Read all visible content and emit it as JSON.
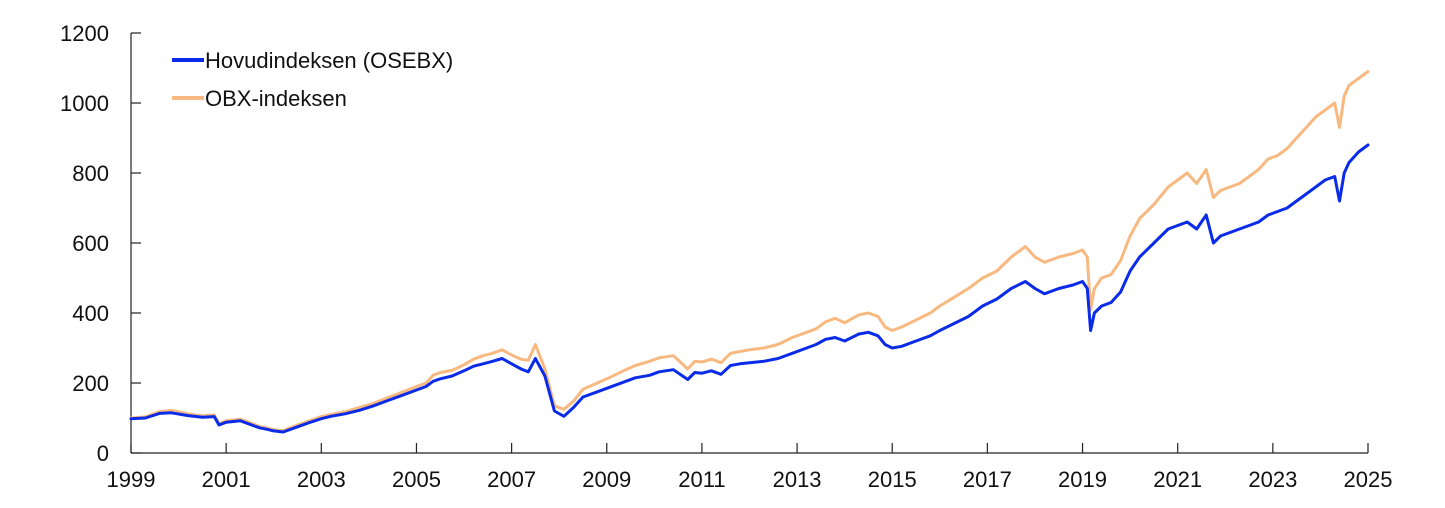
{
  "chart_data": {
    "type": "line",
    "title": "",
    "xlabel": "",
    "ylabel": "",
    "xlim": [
      1999,
      2025
    ],
    "ylim": [
      0,
      1200
    ],
    "grid": false,
    "legend_position": "top-left",
    "x_ticks": [
      1999,
      2001,
      2003,
      2005,
      2007,
      2009,
      2011,
      2013,
      2015,
      2017,
      2019,
      2021,
      2023,
      2025
    ],
    "x_tick_labels": [
      "1999",
      "2001",
      "2003",
      "2005",
      "2007",
      "2009",
      "2011",
      "2013",
      "2015",
      "2017",
      "2019",
      "2021",
      "2023",
      "2025"
    ],
    "y_ticks": [
      0,
      200,
      400,
      600,
      800,
      1000,
      1200
    ],
    "y_tick_labels": [
      "0",
      "200",
      "400",
      "600",
      "800",
      "1000",
      "1200"
    ],
    "series": [
      {
        "name": "Hovudindeksen (OSEBX)",
        "color": "#0a2be8",
        "x": [
          1999.0,
          1999.3,
          1999.6,
          1999.85,
          2000.2,
          2000.5,
          2000.75,
          2000.85,
          2001.0,
          2001.3,
          2001.5,
          2001.7,
          2001.85,
          2002.0,
          2002.2,
          2002.5,
          2002.75,
          2003.0,
          2003.2,
          2003.5,
          2003.8,
          2004.1,
          2004.4,
          2004.7,
          2005.0,
          2005.2,
          2005.35,
          2005.5,
          2005.75,
          2006.0,
          2006.2,
          2006.4,
          2006.6,
          2006.8,
          2007.0,
          2007.2,
          2007.35,
          2007.5,
          2007.7,
          2007.9,
          2008.1,
          2008.3,
          2008.5,
          2008.8,
          2009.0,
          2009.2,
          2009.4,
          2009.6,
          2009.9,
          2010.1,
          2010.4,
          2010.7,
          2010.85,
          2011.0,
          2011.2,
          2011.4,
          2011.6,
          2011.8,
          2012.0,
          2012.3,
          2012.6,
          2012.9,
          2013.2,
          2013.4,
          2013.6,
          2013.8,
          2014.0,
          2014.3,
          2014.5,
          2014.7,
          2014.85,
          2015.0,
          2015.2,
          2015.5,
          2015.8,
          2016.0,
          2016.3,
          2016.6,
          2016.9,
          2017.2,
          2017.5,
          2017.8,
          2018.0,
          2018.2,
          2018.5,
          2018.8,
          2019.0,
          2019.1,
          2019.17,
          2019.25,
          2019.4,
          2019.6,
          2019.8,
          2020.0,
          2020.2,
          2020.5,
          2020.8,
          2021.0,
          2021.2,
          2021.4,
          2021.6,
          2021.75,
          2021.9,
          2022.1,
          2022.3,
          2022.5,
          2022.7,
          2022.9,
          2023.1,
          2023.3,
          2023.5,
          2023.7,
          2023.9,
          2024.1,
          2024.3,
          2024.4,
          2024.5,
          2024.6,
          2024.8,
          2024.9,
          2025.0
        ],
        "y": [
          98,
          100,
          113,
          115,
          107,
          102,
          104,
          80,
          88,
          92,
          82,
          72,
          68,
          63,
          60,
          75,
          87,
          98,
          105,
          112,
          122,
          135,
          150,
          165,
          180,
          190,
          205,
          212,
          220,
          235,
          248,
          255,
          262,
          270,
          255,
          240,
          232,
          270,
          220,
          120,
          105,
          130,
          160,
          175,
          185,
          195,
          205,
          215,
          222,
          232,
          238,
          210,
          230,
          228,
          235,
          225,
          250,
          255,
          258,
          262,
          270,
          285,
          300,
          310,
          325,
          330,
          320,
          340,
          345,
          335,
          310,
          300,
          305,
          320,
          335,
          350,
          370,
          390,
          420,
          440,
          470,
          490,
          470,
          455,
          470,
          480,
          490,
          470,
          350,
          400,
          420,
          430,
          460,
          520,
          560,
          600,
          640,
          650,
          660,
          640,
          680,
          600,
          620,
          630,
          640,
          650,
          660,
          680,
          690,
          700,
          720,
          740,
          760,
          780,
          790,
          720,
          800,
          830,
          860,
          870,
          880
        ]
      },
      {
        "name": "OBX-indeksen",
        "color": "#f8b981",
        "x": [
          1999.0,
          1999.3,
          1999.6,
          1999.85,
          2000.2,
          2000.5,
          2000.75,
          2000.85,
          2001.0,
          2001.3,
          2001.5,
          2001.7,
          2001.85,
          2002.0,
          2002.2,
          2002.5,
          2002.75,
          2003.0,
          2003.2,
          2003.5,
          2003.8,
          2004.1,
          2004.4,
          2004.7,
          2005.0,
          2005.2,
          2005.35,
          2005.5,
          2005.75,
          2006.0,
          2006.2,
          2006.4,
          2006.6,
          2006.8,
          2007.0,
          2007.2,
          2007.35,
          2007.5,
          2007.7,
          2007.9,
          2008.1,
          2008.3,
          2008.5,
          2008.8,
          2009.0,
          2009.2,
          2009.4,
          2009.6,
          2009.9,
          2010.1,
          2010.4,
          2010.7,
          2010.85,
          2011.0,
          2011.2,
          2011.4,
          2011.6,
          2011.8,
          2012.0,
          2012.3,
          2012.6,
          2012.9,
          2013.2,
          2013.4,
          2013.6,
          2013.8,
          2014.0,
          2014.3,
          2014.5,
          2014.7,
          2014.85,
          2015.0,
          2015.2,
          2015.5,
          2015.8,
          2016.0,
          2016.3,
          2016.6,
          2016.9,
          2017.2,
          2017.5,
          2017.8,
          2018.0,
          2018.2,
          2018.5,
          2018.8,
          2019.0,
          2019.1,
          2019.17,
          2019.25,
          2019.4,
          2019.6,
          2019.8,
          2020.0,
          2020.2,
          2020.5,
          2020.8,
          2021.0,
          2021.2,
          2021.4,
          2021.6,
          2021.75,
          2021.9,
          2022.1,
          2022.3,
          2022.5,
          2022.7,
          2022.9,
          2023.1,
          2023.3,
          2023.5,
          2023.7,
          2023.9,
          2024.1,
          2024.3,
          2024.4,
          2024.5,
          2024.6,
          2024.8,
          2024.9,
          2025.0
        ],
        "y": [
          100,
          103,
          118,
          122,
          112,
          106,
          109,
          84,
          92,
          97,
          87,
          76,
          72,
          67,
          64,
          80,
          92,
          104,
          110,
          118,
          130,
          142,
          158,
          174,
          190,
          200,
          222,
          230,
          236,
          252,
          268,
          278,
          285,
          295,
          280,
          268,
          265,
          310,
          240,
          135,
          125,
          148,
          182,
          200,
          212,
          225,
          238,
          250,
          262,
          272,
          278,
          240,
          262,
          260,
          268,
          258,
          285,
          290,
          295,
          300,
          310,
          330,
          345,
          355,
          375,
          385,
          372,
          395,
          400,
          390,
          360,
          350,
          360,
          380,
          400,
          420,
          445,
          470,
          500,
          520,
          560,
          590,
          560,
          545,
          560,
          570,
          580,
          560,
          410,
          470,
          500,
          510,
          550,
          620,
          670,
          710,
          760,
          780,
          800,
          770,
          810,
          730,
          750,
          760,
          770,
          790,
          810,
          840,
          850,
          870,
          900,
          930,
          960,
          980,
          1000,
          930,
          1020,
          1050,
          1070,
          1080,
          1090
        ]
      }
    ]
  }
}
